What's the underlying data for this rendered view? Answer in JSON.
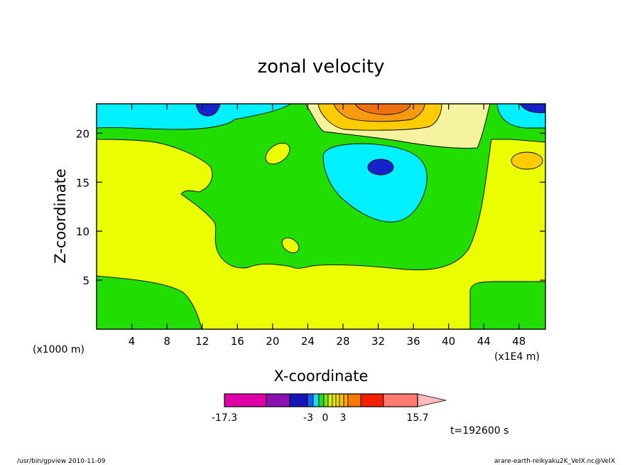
{
  "chart_data": {
    "type": "heatmap",
    "title": "zonal velocity",
    "xlabel": "X-coordinate",
    "ylabel": "Z-coordinate",
    "x_unit": "(x1E4 m)",
    "y_unit": "(x1000 m)",
    "xlim": [
      0,
      51
    ],
    "ylim": [
      0,
      23
    ],
    "x_ticks": [
      4,
      8,
      12,
      16,
      20,
      24,
      28,
      32,
      36,
      40,
      44,
      48
    ],
    "y_ticks": [
      5,
      10,
      15,
      20
    ],
    "colorbar": {
      "levels": [
        -17.3,
        -12.5,
        -9.5,
        -5,
        -3.5,
        -3,
        -2,
        -1,
        0,
        0.5,
        1,
        1.5,
        2,
        3,
        6,
        9,
        15.7
      ],
      "colors": [
        "#e000a8",
        "#8a10b0",
        "#1616b8",
        "#1a5cf2",
        "#19d9f4",
        "#2ed32e",
        "#7ce812",
        "#d6ee10",
        "#ede800",
        "#f5da00",
        "#f6c300",
        "#f8a800",
        "#f87a00",
        "#f02000",
        "#ff7a70",
        "#ffbaba"
      ],
      "tick_labels": [
        "-17.3",
        "-3",
        "0",
        "3",
        "15.7"
      ]
    },
    "palette": {
      "yellow": "#ebff00",
      "green": "#22dd00",
      "cyan": "#00f0ff",
      "blue": "#1422cc",
      "light_yellow": "#f6f3a0",
      "gold": "#ffcc00",
      "orange": "#f89a10",
      "dark_orange": "#f07010"
    }
  },
  "time_label": "t=192600 s",
  "footer": {
    "left": "/usr/bin/gpview   2010-11-09",
    "right": "arare-earth-reikyaku2K_VelX.nc@VelX"
  }
}
